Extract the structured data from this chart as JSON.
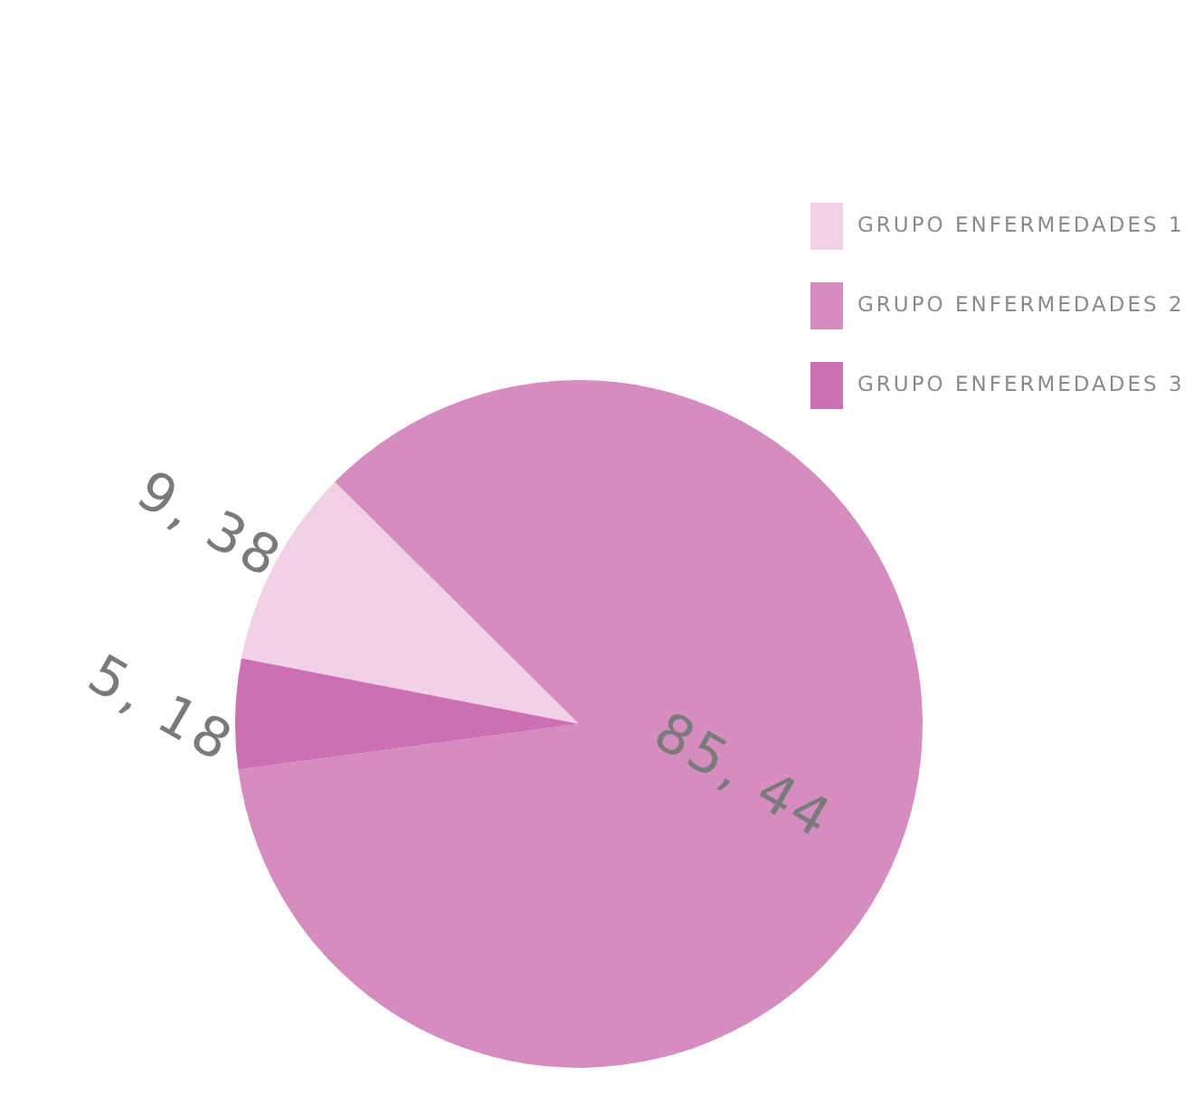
{
  "chart_data": {
    "type": "pie",
    "categories": [
      "GRUPO ENFERMEDADES 1",
      "GRUPO ENFERMEDADES 2",
      "GRUPO ENFERMEDADES 3"
    ],
    "values": [
      9.38,
      85.44,
      5.18
    ],
    "colors": [
      "#f0d0e6",
      "#d58cbf",
      "#cc6fb3"
    ],
    "value_labels": [
      "9, 38",
      "85, 44",
      "5, 18"
    ],
    "legend": "top right"
  }
}
